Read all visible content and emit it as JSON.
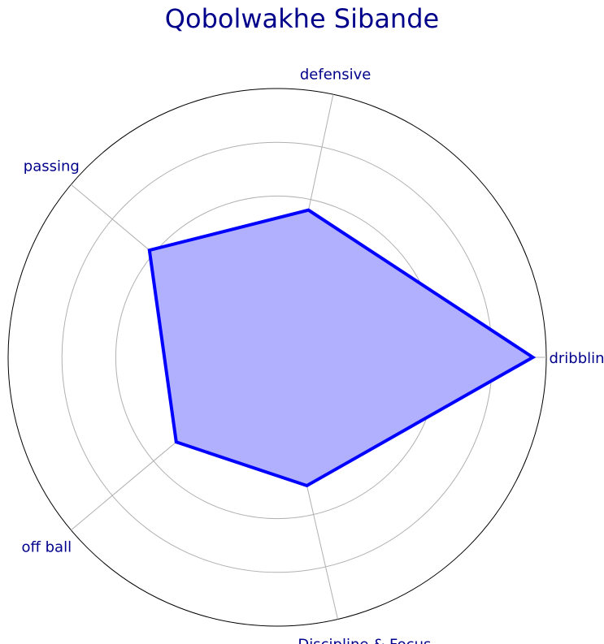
{
  "chart_data": {
    "type": "radar",
    "title": "Qobolwakhe Sibande",
    "categories": [
      "dribbling",
      "defensive",
      "passing",
      "off ball",
      "Discipline & Focus"
    ],
    "series": [
      {
        "values": [
          95,
          56,
          62,
          49,
          49
        ]
      }
    ],
    "rlim": [
      0,
      100
    ],
    "rticks": [
      20,
      40,
      60,
      80,
      100
    ],
    "grid": true,
    "colors": {
      "series_line": "#0000ff",
      "series_fill": "#b0b0ff",
      "label_text": "#00008b",
      "title_text": "#00008b"
    }
  }
}
